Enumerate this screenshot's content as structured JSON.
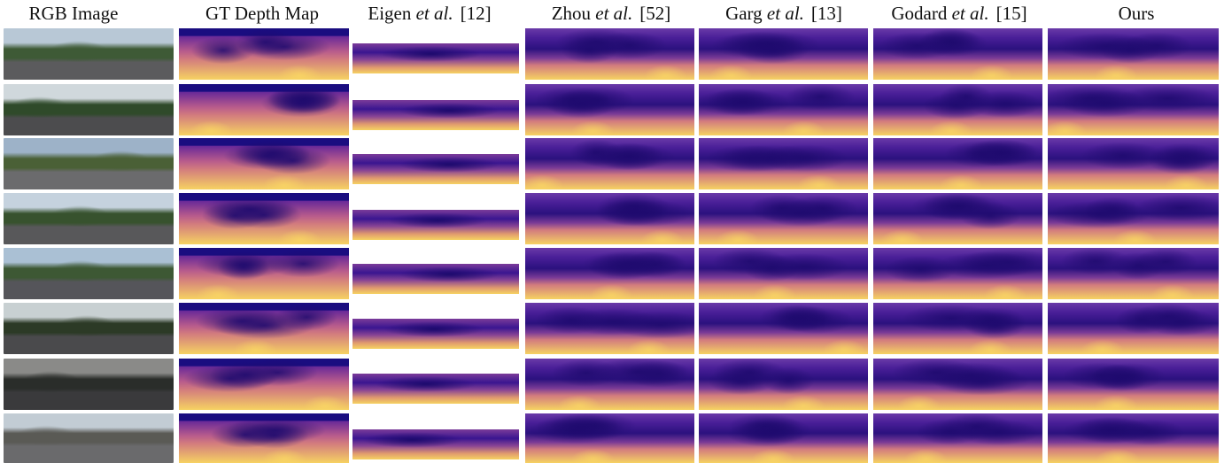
{
  "headers": [
    {
      "pre": "RGB Image",
      "em": "",
      "ref": ""
    },
    {
      "pre": "GT Depth Map",
      "em": "",
      "ref": ""
    },
    {
      "pre": "Eigen ",
      "em": "et al.",
      "ref": "[12]"
    },
    {
      "pre": "Zhou ",
      "em": "et al.",
      "ref": "[52]"
    },
    {
      "pre": "Garg ",
      "em": "et al.",
      "ref": "[13]"
    },
    {
      "pre": "Godard ",
      "em": "et al.",
      "ref": "[15]"
    },
    {
      "pre": "Ours",
      "em": "",
      "ref": ""
    }
  ],
  "colors": {
    "depth_near": "#f6d262",
    "depth_mid": "#d27b7e",
    "depth_far": "#2b117e",
    "depth_sky": "#1a0d80"
  },
  "row_count": 8
}
